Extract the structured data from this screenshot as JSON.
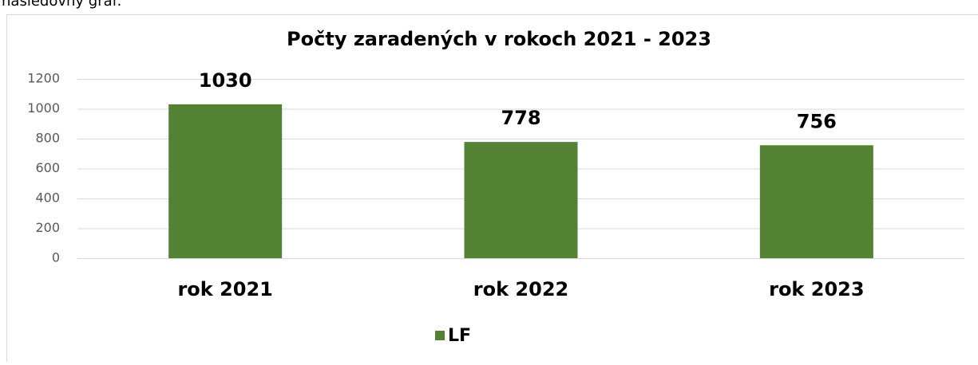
{
  "intro_text": "nasledovný graf:",
  "chart_data": {
    "type": "bar",
    "title": "Počty zaradených v rokoch 2021 - 2023",
    "categories": [
      "rok 2021",
      "rok 2022",
      "rok 2023"
    ],
    "series": [
      {
        "name": "LF",
        "color": "#548235",
        "values": [
          1030,
          778,
          756
        ]
      }
    ],
    "ylim": [
      0,
      1200
    ],
    "yticks": [
      0,
      200,
      400,
      600,
      800,
      1000,
      1200
    ],
    "grid": true,
    "legend": "bottom"
  }
}
